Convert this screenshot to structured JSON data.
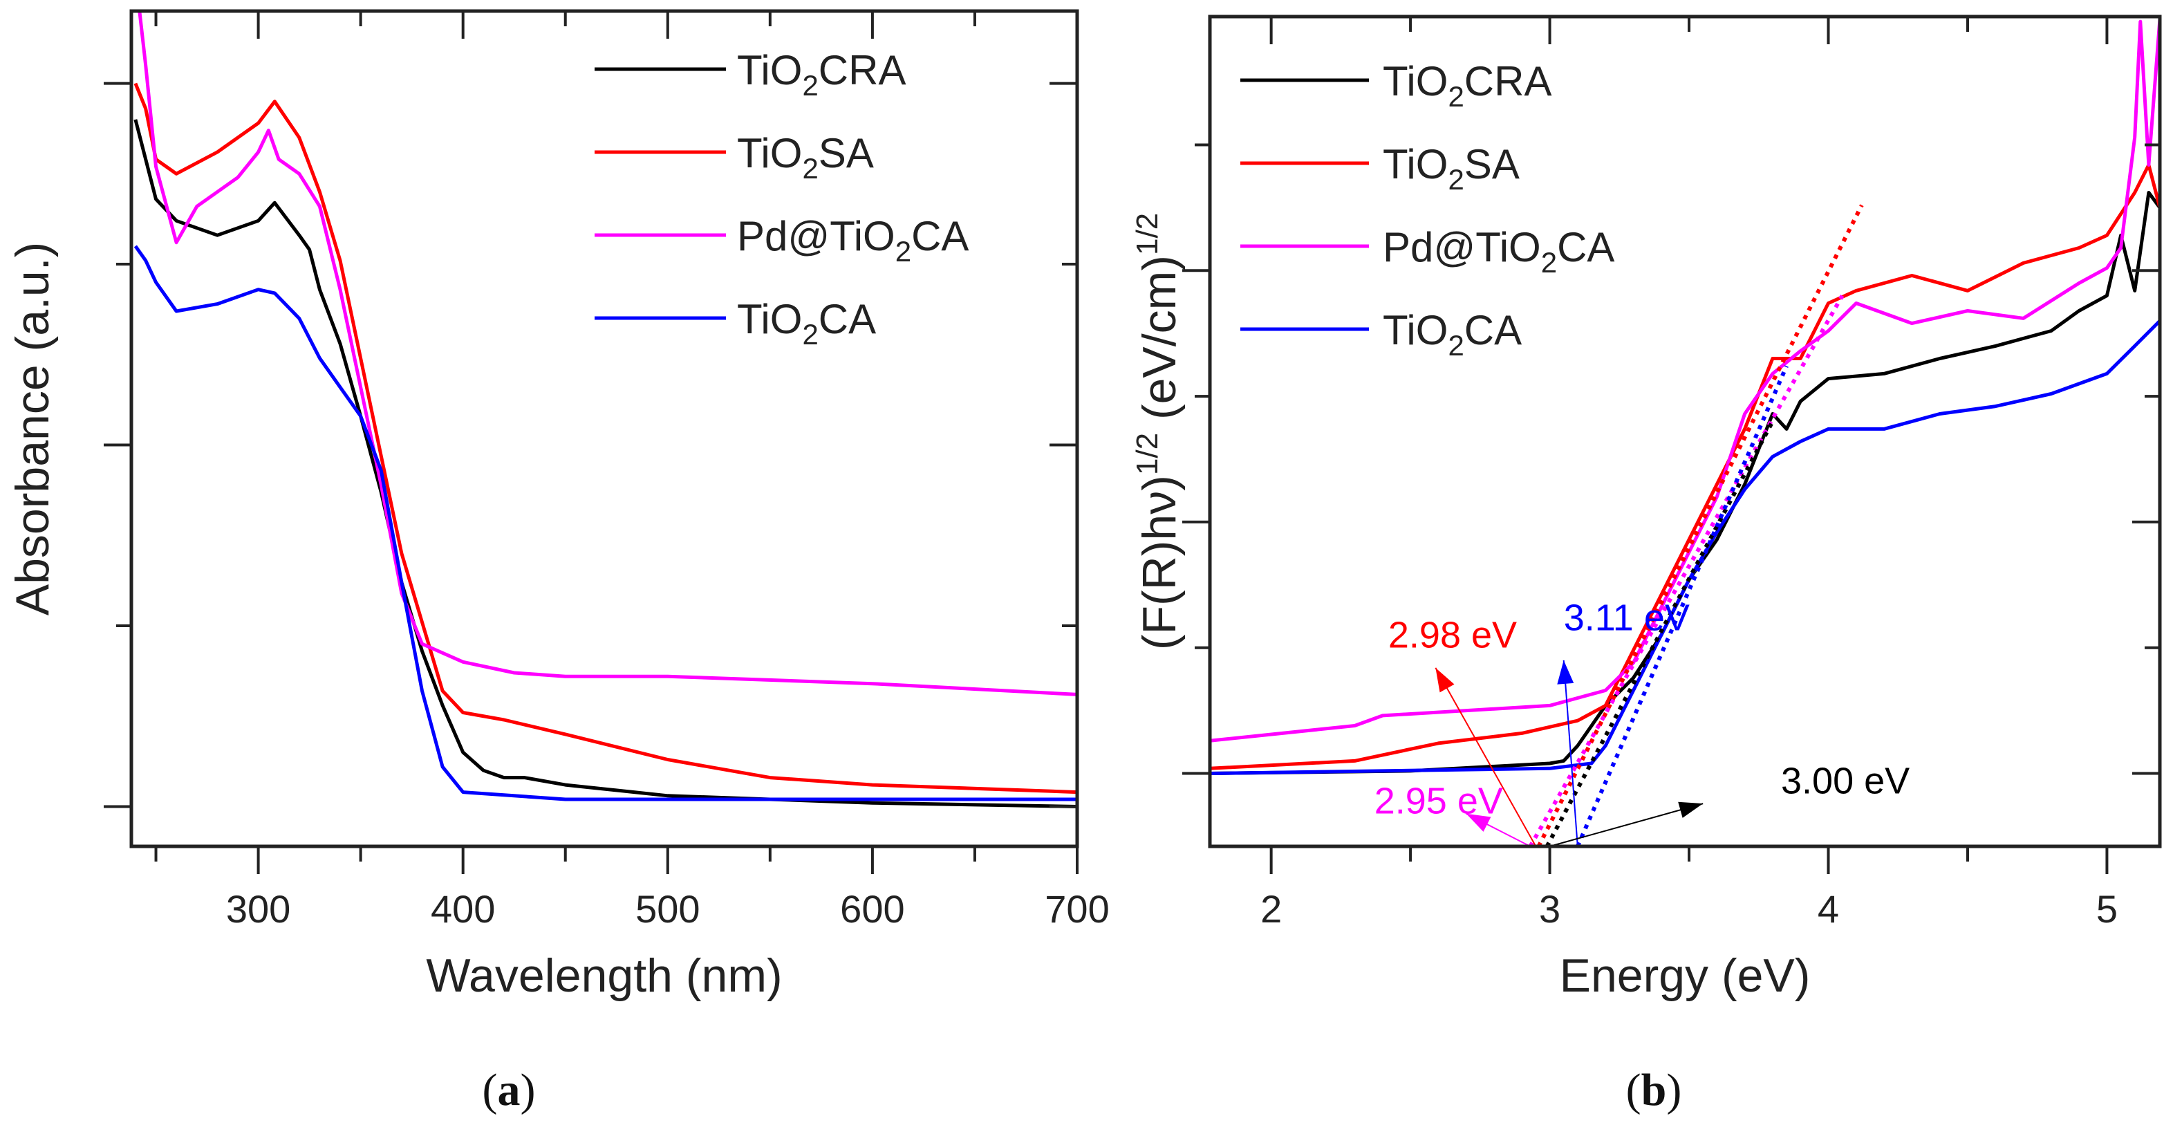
{
  "chart_data": [
    {
      "panel_label": "a",
      "type": "line",
      "xlabel": "Wavelength (nm)",
      "ylabel": "Absorbance (a.u.)",
      "xlim": [
        238,
        700
      ],
      "ylim": [
        -0.11,
        2.2
      ],
      "xticks": [
        300,
        400,
        500,
        600,
        700
      ],
      "yticks_labeled": false,
      "grid": false,
      "legend_placement": "top-right",
      "series": [
        {
          "name": "TiO₂CRA",
          "color": "#000000",
          "x": [
            240,
            245,
            250,
            260,
            280,
            300,
            308,
            320,
            325,
            330,
            340,
            350,
            360,
            370,
            380,
            390,
            400,
            410,
            420,
            430,
            450,
            500,
            550,
            600,
            700
          ],
          "y": [
            1.9,
            1.79,
            1.68,
            1.62,
            1.58,
            1.62,
            1.67,
            1.58,
            1.54,
            1.43,
            1.28,
            1.08,
            0.87,
            0.62,
            0.43,
            0.28,
            0.15,
            0.1,
            0.08,
            0.08,
            0.06,
            0.03,
            0.02,
            0.01,
            0.0
          ]
        },
        {
          "name": "TiO₂SA",
          "color": "#ff0000",
          "x": [
            240,
            245,
            250,
            260,
            280,
            300,
            308,
            320,
            330,
            340,
            350,
            360,
            370,
            380,
            390,
            400,
            420,
            450,
            500,
            550,
            600,
            700
          ],
          "y": [
            2.0,
            1.93,
            1.79,
            1.75,
            1.81,
            1.89,
            1.95,
            1.85,
            1.7,
            1.51,
            1.24,
            0.97,
            0.7,
            0.51,
            0.32,
            0.26,
            0.24,
            0.2,
            0.13,
            0.08,
            0.06,
            0.04
          ]
        },
        {
          "name": "Pd@TiO₂CA",
          "color": "#ff00ff",
          "x": [
            242,
            245,
            250,
            260,
            270,
            280,
            290,
            300,
            305,
            310,
            320,
            330,
            340,
            350,
            360,
            370,
            380,
            400,
            425,
            450,
            500,
            600,
            700
          ],
          "y": [
            2.2,
            2.05,
            1.77,
            1.56,
            1.66,
            1.7,
            1.74,
            1.81,
            1.87,
            1.79,
            1.75,
            1.66,
            1.43,
            1.16,
            0.89,
            0.59,
            0.45,
            0.4,
            0.37,
            0.36,
            0.36,
            0.34,
            0.31
          ]
        },
        {
          "name": "TiO₂CA",
          "color": "#0000ff",
          "x": [
            240,
            245,
            250,
            260,
            280,
            300,
            308,
            320,
            330,
            340,
            350,
            360,
            370,
            380,
            390,
            400,
            450,
            500,
            600,
            700
          ],
          "y": [
            1.55,
            1.51,
            1.45,
            1.37,
            1.39,
            1.43,
            1.42,
            1.35,
            1.24,
            1.16,
            1.08,
            0.93,
            0.62,
            0.32,
            0.11,
            0.04,
            0.02,
            0.02,
            0.02,
            0.02
          ]
        }
      ]
    },
    {
      "panel_label": "b",
      "type": "line",
      "xlabel": "Energy (eV)",
      "ylabel_parts": [
        "(F(R)hν)",
        "1/2",
        " (eV/cm)",
        "1/2"
      ],
      "xlim": [
        1.78,
        5.19
      ],
      "ylim": [
        -0.29,
        3.01
      ],
      "xticks": [
        2,
        3,
        4,
        5
      ],
      "yticks_labeled": false,
      "grid": false,
      "legend_placement": "top-left",
      "series": [
        {
          "name": "TiO₂CRA",
          "color": "#000000",
          "x": [
            1.78,
            2.5,
            3.0,
            3.05,
            3.1,
            3.2,
            3.3,
            3.4,
            3.5,
            3.6,
            3.7,
            3.8,
            3.85,
            3.9,
            4.0,
            4.2,
            4.4,
            4.6,
            4.8,
            4.9,
            5.0,
            5.05,
            5.1,
            5.15,
            5.19
          ],
          "y": [
            0,
            0.01,
            0.04,
            0.05,
            0.11,
            0.27,
            0.38,
            0.55,
            0.77,
            0.93,
            1.15,
            1.43,
            1.37,
            1.48,
            1.57,
            1.59,
            1.65,
            1.7,
            1.76,
            1.84,
            1.9,
            2.14,
            1.92,
            2.31,
            2.25
          ]
        },
        {
          "name": "TiO₂SA",
          "color": "#ff0000",
          "x": [
            1.78,
            2.3,
            2.6,
            2.9,
            3.1,
            3.2,
            3.3,
            3.4,
            3.5,
            3.6,
            3.7,
            3.8,
            3.9,
            4.0,
            4.1,
            4.3,
            4.5,
            4.7,
            4.9,
            5.0,
            5.1,
            5.15,
            5.19
          ],
          "y": [
            0.02,
            0.05,
            0.12,
            0.16,
            0.21,
            0.27,
            0.49,
            0.71,
            0.93,
            1.15,
            1.37,
            1.65,
            1.65,
            1.87,
            1.92,
            1.98,
            1.92,
            2.03,
            2.09,
            2.14,
            2.31,
            2.42,
            2.25
          ]
        },
        {
          "name": "Pd@TiO₂CA",
          "color": "#ff00ff",
          "x": [
            1.78,
            2.3,
            2.4,
            3.0,
            3.2,
            3.3,
            3.4,
            3.5,
            3.6,
            3.7,
            3.8,
            3.9,
            4.0,
            4.1,
            4.3,
            4.5,
            4.7,
            4.9,
            5.0,
            5.05,
            5.1,
            5.12,
            5.15,
            5.19
          ],
          "y": [
            0.13,
            0.19,
            0.23,
            0.27,
            0.33,
            0.44,
            0.66,
            0.88,
            1.1,
            1.43,
            1.59,
            1.68,
            1.76,
            1.87,
            1.79,
            1.84,
            1.81,
            1.95,
            2.01,
            2.09,
            2.53,
            2.99,
            2.42,
            3.0
          ]
        },
        {
          "name": "TiO₂CA",
          "color": "#0000ff",
          "x": [
            1.78,
            3.0,
            3.15,
            3.2,
            3.3,
            3.4,
            3.5,
            3.6,
            3.7,
            3.8,
            3.9,
            4.0,
            4.2,
            4.4,
            4.6,
            4.8,
            5.0,
            5.1,
            5.19
          ],
          "y": [
            0,
            0.02,
            0.04,
            0.11,
            0.33,
            0.55,
            0.77,
            0.96,
            1.13,
            1.26,
            1.32,
            1.37,
            1.37,
            1.43,
            1.46,
            1.51,
            1.59,
            1.7,
            1.8
          ]
        }
      ],
      "tangent_lines": [
        {
          "color": "#ff0000",
          "from": [
            2.96,
            -0.29
          ],
          "to": [
            4.12,
            2.26
          ]
        },
        {
          "color": "#ff00ff",
          "from": [
            2.93,
            -0.29
          ],
          "to": [
            4.05,
            1.9
          ]
        },
        {
          "color": "#000000",
          "from": [
            2.99,
            -0.29
          ],
          "to": [
            3.8,
            1.4
          ]
        },
        {
          "color": "#0000ff",
          "from": [
            3.1,
            -0.29
          ],
          "to": [
            3.85,
            1.62
          ]
        }
      ],
      "annotations": [
        {
          "text": "2.98 eV",
          "color": "#ff0000",
          "at": [
            2.42,
            0.5
          ],
          "arrow_from": [
            2.95,
            -0.29
          ],
          "arrow_to": [
            2.59,
            0.42
          ]
        },
        {
          "text": "3.11 eV",
          "color": "#0000ff",
          "at": [
            3.05,
            0.57
          ],
          "arrow_from": [
            3.1,
            -0.29
          ],
          "arrow_to": [
            3.05,
            0.45
          ]
        },
        {
          "text": "2.95 eV",
          "color": "#ff00ff",
          "at": [
            2.37,
            -0.16
          ],
          "arrow_from": [
            2.93,
            -0.29
          ],
          "arrow_to": [
            2.7,
            -0.16
          ]
        },
        {
          "text": "3.00 eV",
          "color": "#000000",
          "at": [
            3.83,
            -0.08
          ],
          "arrow_from": [
            3.0,
            -0.29
          ],
          "arrow_to": [
            3.55,
            -0.12
          ]
        }
      ]
    }
  ]
}
